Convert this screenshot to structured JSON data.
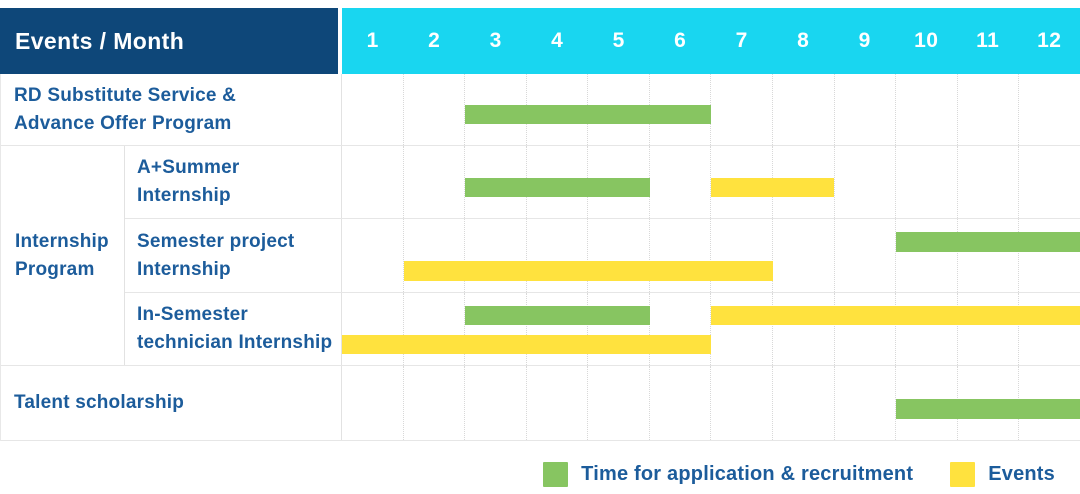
{
  "colors": {
    "header_bg": "#0e4779",
    "months_bg": "#19d6f0",
    "application": "#87c561",
    "events": "#ffe23e",
    "label_text": "#1c5c9b",
    "header_text": "#ffffff",
    "grid_line": "#e6e6e6",
    "grid_dotted": "#d8d8d8"
  },
  "header": {
    "label": "Events / Month",
    "months": [
      "1",
      "2",
      "3",
      "4",
      "5",
      "6",
      "7",
      "8",
      "9",
      "10",
      "11",
      "12"
    ]
  },
  "group": {
    "label": "Internship\nProgram"
  },
  "rows": [
    {
      "label": "RD Substitute Service &\nAdvance Offer Program",
      "bars": [
        {
          "kind": "application",
          "start": 3,
          "end": 6,
          "band": "mid"
        }
      ]
    },
    {
      "label": "A+Summer\nInternship",
      "bars": [
        {
          "kind": "application",
          "start": 3,
          "end": 5,
          "band": "mid"
        },
        {
          "kind": "events",
          "start": 7,
          "end": 8,
          "band": "mid"
        }
      ]
    },
    {
      "label": "Semester project\nInternship",
      "bars": [
        {
          "kind": "application",
          "start": 10,
          "end": 12,
          "band": "upper"
        },
        {
          "kind": "events",
          "start": 2,
          "end": 7,
          "band": "lower"
        }
      ]
    },
    {
      "label": "In-Semester\ntechnician Internship",
      "bars": [
        {
          "kind": "application",
          "start": 3,
          "end": 5,
          "band": "upper"
        },
        {
          "kind": "events",
          "start": 7,
          "end": 12,
          "band": "upper"
        },
        {
          "kind": "events",
          "start": 1,
          "end": 6,
          "band": "lower"
        }
      ]
    },
    {
      "label": "Talent scholarship",
      "bars": [
        {
          "kind": "application",
          "start": 10,
          "end": 12,
          "band": "mid"
        }
      ]
    }
  ],
  "legend": [
    {
      "kind": "application",
      "label": "Time for application & recruitment"
    },
    {
      "kind": "events",
      "label": "Events"
    }
  ],
  "chart_data": {
    "type": "bar",
    "subtype": "gantt",
    "title": "Events / Month",
    "xlabel": "Month",
    "x_ticks": [
      "1",
      "2",
      "3",
      "4",
      "5",
      "6",
      "7",
      "8",
      "9",
      "10",
      "11",
      "12"
    ],
    "x_range": [
      1,
      12
    ],
    "categories": [
      "RD Substitute Service & Advance Offer Program",
      "Internship Program - A+Summer Internship",
      "Internship Program - Semester project Internship",
      "Internship Program - In-Semester technician Internship",
      "Talent scholarship"
    ],
    "series": [
      {
        "name": "Time for application & recruitment",
        "color": "#87c561",
        "bars": [
          {
            "category": "RD Substitute Service & Advance Offer Program",
            "start_month": 3,
            "end_month": 6
          },
          {
            "category": "Internship Program - A+Summer Internship",
            "start_month": 3,
            "end_month": 5
          },
          {
            "category": "Internship Program - Semester project Internship",
            "start_month": 10,
            "end_month": 12
          },
          {
            "category": "Internship Program - In-Semester technician Internship",
            "start_month": 3,
            "end_month": 5
          },
          {
            "category": "Talent scholarship",
            "start_month": 10,
            "end_month": 12
          }
        ]
      },
      {
        "name": "Events",
        "color": "#ffe23e",
        "bars": [
          {
            "category": "Internship Program - A+Summer Internship",
            "start_month": 7,
            "end_month": 8
          },
          {
            "category": "Internship Program - Semester project Internship",
            "start_month": 2,
            "end_month": 7
          },
          {
            "category": "Internship Program - In-Semester technician Internship",
            "start_month": 7,
            "end_month": 12
          },
          {
            "category": "Internship Program - In-Semester technician Internship",
            "start_month": 1,
            "end_month": 6
          }
        ]
      }
    ],
    "legend_position": "bottom-right",
    "grid": "on"
  }
}
